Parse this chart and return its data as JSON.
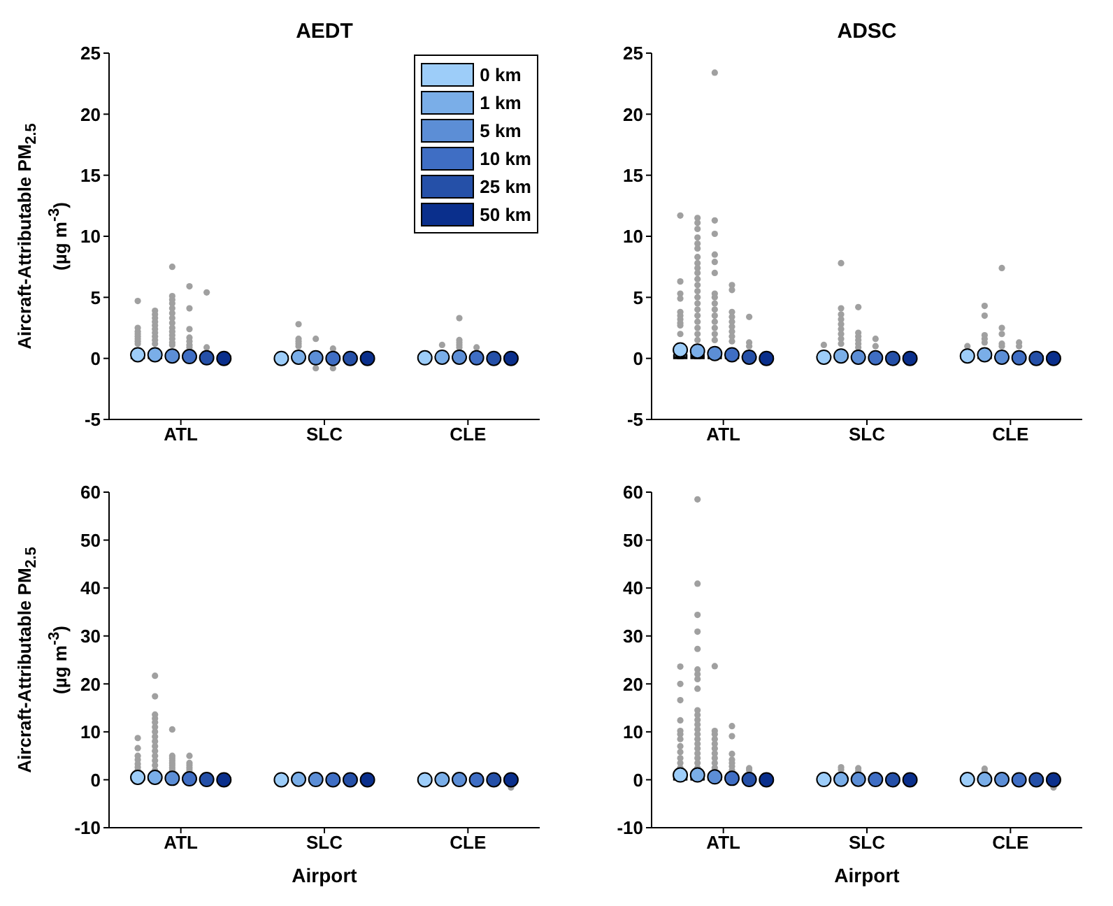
{
  "chart_data": [
    {
      "type": "box",
      "title": "AEDT",
      "ylabel": "Aircraft-Attributable PM$_{2.5}$ (µg m$^{-3}$)",
      "categories": [
        "ATL",
        "SLC",
        "CLE"
      ],
      "ylim": [
        -5,
        25
      ],
      "yticks": [
        -5,
        0,
        5,
        10,
        15,
        20,
        25
      ],
      "legend": "top right",
      "series": [
        {
          "name": "0 km",
          "color": "#9dcdf9",
          "boxes": [
            {
              "low": 0,
              "q1": 0,
              "median": 0.1,
              "q3": 0.3,
              "high": 0.8,
              "mean": 0.3,
              "outliers": [
                4.7,
                2.5,
                2.2,
                2.0,
                1.8,
                1.6,
                1.4,
                1.2
              ]
            },
            {
              "low": 0,
              "q1": 0,
              "median": 0,
              "q3": 0.2,
              "high": 0.4,
              "mean": 0
            },
            {
              "low": 0,
              "q1": 0,
              "median": 0,
              "q3": 0.2,
              "high": 0.4,
              "mean": 0.05
            }
          ]
        },
        {
          "name": "1 km",
          "color": "#7aaee8",
          "boxes": [
            {
              "low": 0,
              "q1": 0,
              "median": 0.1,
              "q3": 0.3,
              "high": 0.8,
              "mean": 0.3,
              "outliers": [
                3.9,
                3.6,
                3.3,
                3.0,
                2.7,
                2.4,
                2.1,
                1.8,
                1.5,
                1.2
              ]
            },
            {
              "low": 0,
              "q1": 0,
              "median": 0,
              "q3": 0.2,
              "high": 0.4,
              "mean": 0.1,
              "outliers": [
                2.8,
                1.6,
                1.4,
                1.2,
                1.0
              ]
            },
            {
              "low": 0,
              "q1": 0,
              "median": 0,
              "q3": 0.2,
              "high": 0.4,
              "mean": 0.1,
              "outliers": [
                1.1
              ]
            }
          ]
        },
        {
          "name": "5 km",
          "color": "#5c8ed6",
          "boxes": [
            {
              "low": 0,
              "q1": 0,
              "median": 0.1,
              "q3": 0.2,
              "high": 0.7,
              "mean": 0.2,
              "outliers": [
                7.5,
                5.1,
                4.8,
                4.5,
                4.1,
                3.7,
                3.3,
                2.9,
                2.5,
                2.2,
                1.9,
                1.6,
                1.3,
                1.1
              ]
            },
            {
              "low": 0,
              "q1": 0,
              "median": 0,
              "q3": 0.2,
              "high": 0.4,
              "mean": 0.05,
              "outliers": [
                1.6,
                -0.8
              ]
            },
            {
              "low": 0,
              "q1": 0,
              "median": 0,
              "q3": 0.2,
              "high": 0.4,
              "mean": 0.1,
              "outliers": [
                3.3,
                1.5,
                1.3,
                1.1,
                0.9
              ]
            }
          ]
        },
        {
          "name": "10 km",
          "color": "#3f6ec4",
          "boxes": [
            {
              "low": 0,
              "q1": 0,
              "median": 0.05,
              "q3": 0.2,
              "high": 0.4,
              "mean": 0.15,
              "outliers": [
                5.9,
                4.1,
                2.4,
                1.7,
                1.4,
                1.1,
                0.9
              ]
            },
            {
              "low": 0,
              "q1": 0,
              "median": 0,
              "q3": 0.2,
              "high": 0.4,
              "mean": 0,
              "outliers": [
                0.8,
                -0.8
              ]
            },
            {
              "low": 0,
              "q1": 0,
              "median": 0,
              "q3": 0.2,
              "high": 0.4,
              "mean": 0.05,
              "outliers": [
                0.9
              ]
            }
          ]
        },
        {
          "name": "25 km",
          "color": "#2550a8",
          "boxes": [
            {
              "low": 0,
              "q1": 0,
              "median": 0,
              "q3": 0.2,
              "high": 0.4,
              "mean": 0.05,
              "outliers": [
                5.4,
                0.9
              ]
            },
            {
              "low": 0,
              "q1": 0,
              "median": 0,
              "q3": 0.2,
              "high": 0.4,
              "mean": 0
            },
            {
              "low": 0,
              "q1": 0,
              "median": 0,
              "q3": 0.2,
              "high": 0.4,
              "mean": 0
            }
          ]
        },
        {
          "name": "50 km",
          "color": "#0a2f8c",
          "boxes": [
            {
              "low": 0,
              "q1": 0,
              "median": 0,
              "q3": 0.2,
              "high": 0.4,
              "mean": 0
            },
            {
              "low": 0,
              "q1": 0,
              "median": 0,
              "q3": 0.2,
              "high": 0.4,
              "mean": 0
            },
            {
              "low": 0,
              "q1": 0,
              "median": 0,
              "q3": 0.2,
              "high": 0.4,
              "mean": 0
            }
          ]
        }
      ]
    },
    {
      "type": "box",
      "title": "ADSC",
      "categories": [
        "ATL",
        "SLC",
        "CLE"
      ],
      "ylim": [
        -5,
        25
      ],
      "yticks": [
        -5,
        0,
        5,
        10,
        15,
        20,
        25
      ],
      "series": [
        {
          "color": "#9dcdf9",
          "boxes": [
            {
              "low": 0,
              "q1": 0,
              "median": 0.1,
              "q3": 0.3,
              "high": 0.8,
              "mean": 0.7,
              "outliers": [
                11.7,
                6.3,
                5.3,
                4.9,
                3.8,
                3.5,
                3.2,
                2.9,
                2.7,
                2.0
              ]
            },
            {
              "low": 0,
              "q1": 0,
              "median": 0,
              "q3": 0.2,
              "high": 0.4,
              "mean": 0.1,
              "outliers": [
                1.1
              ]
            },
            {
              "low": 0,
              "q1": 0,
              "median": 0.1,
              "q3": 0.3,
              "high": 0.6,
              "mean": 0.2,
              "outliers": [
                1.0
              ]
            }
          ]
        },
        {
          "color": "#7aaee8",
          "boxes": [
            {
              "low": 0,
              "q1": 0,
              "median": 0.1,
              "q3": 0.3,
              "high": 0.8,
              "mean": 0.6,
              "outliers": [
                11.5,
                11.1,
                10.6,
                9.9,
                9.4,
                9.0,
                8.3,
                7.8,
                7.4,
                7.0,
                6.5,
                6.0,
                5.5,
                5.0,
                4.5,
                4.0,
                3.5,
                3.0,
                2.5,
                2.0,
                1.5
              ]
            },
            {
              "low": 0,
              "q1": 0,
              "median": 0,
              "q3": 0.2,
              "high": 0.4,
              "mean": 0.2,
              "outliers": [
                7.8,
                4.1,
                3.6,
                3.2,
                2.8,
                2.4,
                2.0,
                1.6,
                1.2
              ]
            },
            {
              "low": 0,
              "q1": 0,
              "median": 0.1,
              "q3": 0.3,
              "high": 0.6,
              "mean": 0.3,
              "outliers": [
                4.3,
                3.5,
                1.9,
                1.6,
                1.3
              ]
            }
          ]
        },
        {
          "color": "#5c8ed6",
          "boxes": [
            {
              "low": 0,
              "q1": 0,
              "median": 0.05,
              "q3": 0.2,
              "high": 0.6,
              "mean": 0.4,
              "outliers": [
                23.4,
                11.3,
                10.2,
                8.5,
                7.9,
                7.0,
                5.3,
                5.0,
                4.5,
                4.0,
                3.5,
                3.0,
                2.5,
                2.0,
                1.5
              ]
            },
            {
              "low": 0,
              "q1": 0,
              "median": 0,
              "q3": 0.2,
              "high": 0.4,
              "mean": 0.1,
              "outliers": [
                4.2,
                2.1,
                1.8,
                1.5,
                1.2,
                0.9
              ]
            },
            {
              "low": 0,
              "q1": 0,
              "median": 0,
              "q3": 0.2,
              "high": 0.4,
              "mean": 0.1,
              "outliers": [
                7.4,
                2.5,
                2.0,
                1.2,
                1.0
              ]
            }
          ]
        },
        {
          "color": "#3f6ec4",
          "boxes": [
            {
              "low": 0,
              "q1": 0,
              "median": 0.05,
              "q3": 0.2,
              "high": 0.4,
              "mean": 0.3,
              "outliers": [
                6.0,
                5.6,
                3.8,
                3.4,
                3.0,
                2.6,
                2.2,
                1.8,
                1.4
              ]
            },
            {
              "low": 0,
              "q1": 0,
              "median": 0,
              "q3": 0.2,
              "high": 0.4,
              "mean": 0.05,
              "outliers": [
                1.6,
                1.0
              ]
            },
            {
              "low": 0,
              "q1": 0,
              "median": 0,
              "q3": 0.2,
              "high": 0.4,
              "mean": 0.05,
              "outliers": [
                1.3,
                1.0
              ]
            }
          ]
        },
        {
          "color": "#2550a8",
          "boxes": [
            {
              "low": 0,
              "q1": 0,
              "median": 0,
              "q3": 0.2,
              "high": 0.4,
              "mean": 0.1,
              "outliers": [
                3.4,
                1.3,
                1.0
              ]
            },
            {
              "low": 0,
              "q1": 0,
              "median": 0,
              "q3": 0.2,
              "high": 0.4,
              "mean": 0
            },
            {
              "low": 0,
              "q1": 0,
              "median": 0,
              "q3": 0.2,
              "high": 0.4,
              "mean": 0
            }
          ]
        },
        {
          "color": "#0a2f8c",
          "boxes": [
            {
              "low": 0,
              "q1": 0,
              "median": 0,
              "q3": 0.2,
              "high": 0.4,
              "mean": 0
            },
            {
              "low": 0,
              "q1": 0,
              "median": 0,
              "q3": 0.2,
              "high": 0.4,
              "mean": 0
            },
            {
              "low": 0,
              "q1": 0,
              "median": 0,
              "q3": 0.2,
              "high": 0.4,
              "mean": 0
            }
          ]
        }
      ]
    },
    {
      "type": "box",
      "ylabel": "Aircraft-Attributable PM$_{2.5}$ (µg m$^{-3}$)",
      "xlabel": "Airport",
      "categories": [
        "ATL",
        "SLC",
        "CLE"
      ],
      "ylim": [
        -10,
        60
      ],
      "yticks": [
        -10,
        0,
        10,
        20,
        30,
        40,
        50,
        60
      ],
      "series": [
        {
          "color": "#9dcdf9",
          "boxes": [
            {
              "low": 0,
              "q1": 0,
              "median": 0.1,
              "q3": 0.5,
              "high": 1.0,
              "mean": 0.5,
              "outliers": [
                8.7,
                6.6,
                5.0,
                4.2,
                3.3,
                2.6,
                2.0
              ]
            },
            {
              "low": 0,
              "q1": 0,
              "median": 0,
              "q3": 0.4,
              "high": 0.8,
              "mean": 0
            },
            {
              "low": 0,
              "q1": 0,
              "median": 0,
              "q3": 0.4,
              "high": 0.8,
              "mean": 0
            }
          ]
        },
        {
          "color": "#7aaee8",
          "boxes": [
            {
              "low": 0,
              "q1": 0,
              "median": 0.1,
              "q3": 0.5,
              "high": 1.0,
              "mean": 0.5,
              "outliers": [
                21.7,
                17.4,
                13.6,
                12.8,
                12.0,
                11.0,
                10.0,
                9.0,
                8.0,
                7.0,
                6.0,
                5.0,
                4.0,
                3.0,
                2.0
              ]
            },
            {
              "low": 0,
              "q1": 0,
              "median": 0,
              "q3": 0.4,
              "high": 0.8,
              "mean": 0.1
            },
            {
              "low": 0,
              "q1": 0,
              "median": 0,
              "q3": 0.4,
              "high": 0.8,
              "mean": 0.05
            }
          ]
        },
        {
          "color": "#5c8ed6",
          "boxes": [
            {
              "low": 0,
              "q1": 0,
              "median": 0.05,
              "q3": 0.4,
              "high": 0.8,
              "mean": 0.3,
              "outliers": [
                10.5,
                5.0,
                4.5,
                4.0,
                3.5,
                3.0,
                2.5,
                2.0
              ]
            },
            {
              "low": 0,
              "q1": 0,
              "median": 0,
              "q3": 0.4,
              "high": 0.8,
              "mean": 0.05
            },
            {
              "low": 0,
              "q1": 0,
              "median": 0,
              "q3": 0.4,
              "high": 0.8,
              "mean": 0.05
            }
          ]
        },
        {
          "color": "#3f6ec4",
          "boxes": [
            {
              "low": 0,
              "q1": 0,
              "median": 0.05,
              "q3": 0.4,
              "high": 0.8,
              "mean": 0.2,
              "outliers": [
                5.0,
                3.5,
                3.0,
                2.5,
                2.0
              ]
            },
            {
              "low": 0,
              "q1": 0,
              "median": 0,
              "q3": 0.4,
              "high": 0.8,
              "mean": 0
            },
            {
              "low": 0,
              "q1": 0,
              "median": 0,
              "q3": 0.4,
              "high": 0.8,
              "mean": 0
            }
          ]
        },
        {
          "color": "#2550a8",
          "boxes": [
            {
              "low": 0,
              "q1": 0,
              "median": 0,
              "q3": 0.4,
              "high": 0.8,
              "mean": 0.05
            },
            {
              "low": 0,
              "q1": 0,
              "median": 0,
              "q3": 0.4,
              "high": 0.8,
              "mean": 0
            },
            {
              "low": 0,
              "q1": 0,
              "median": 0,
              "q3": 0.4,
              "high": 0.8,
              "mean": 0
            }
          ]
        },
        {
          "color": "#0a2f8c",
          "boxes": [
            {
              "low": 0,
              "q1": 0,
              "median": 0,
              "q3": 0.4,
              "high": 0.8,
              "mean": 0
            },
            {
              "low": 0,
              "q1": 0,
              "median": 0,
              "q3": 0.4,
              "high": 0.8,
              "mean": 0
            },
            {
              "low": -0.5,
              "q1": 0,
              "median": 0,
              "q3": 0.4,
              "high": 0.8,
              "mean": 0,
              "outliers": [
                -1.6
              ]
            }
          ]
        }
      ]
    },
    {
      "type": "box",
      "xlabel": "Airport",
      "categories": [
        "ATL",
        "SLC",
        "CLE"
      ],
      "ylim": [
        -10,
        60
      ],
      "yticks": [
        -10,
        0,
        10,
        20,
        30,
        40,
        50,
        60
      ],
      "series": [
        {
          "color": "#9dcdf9",
          "boxes": [
            {
              "low": 0,
              "q1": 0,
              "median": 0.1,
              "q3": 0.5,
              "high": 1.0,
              "mean": 1.0,
              "outliers": [
                23.6,
                20.0,
                16.6,
                12.4,
                10.2,
                9.5,
                8.5,
                7.0,
                5.8,
                4.5,
                3.5,
                2.5
              ]
            },
            {
              "low": 0,
              "q1": 0,
              "median": 0,
              "q3": 0.4,
              "high": 0.8,
              "mean": 0.05
            },
            {
              "low": 0,
              "q1": 0,
              "median": 0,
              "q3": 0.4,
              "high": 0.8,
              "mean": 0.05
            }
          ]
        },
        {
          "color": "#7aaee8",
          "boxes": [
            {
              "low": 0,
              "q1": 0,
              "median": 0.1,
              "q3": 0.5,
              "high": 1.0,
              "mean": 1.0,
              "outliers": [
                58.5,
                40.9,
                34.4,
                30.9,
                27.3,
                23.0,
                22.0,
                21.0,
                19.0,
                14.5,
                13.5,
                12.5,
                11.5,
                10.5,
                9.5,
                8.5,
                7.5,
                6.5,
                5.5,
                4.5,
                3.5,
                2.5
              ]
            },
            {
              "low": 0,
              "q1": 0,
              "median": 0,
              "q3": 0.4,
              "high": 0.8,
              "mean": 0.1,
              "outliers": [
                2.6,
                2.1
              ]
            },
            {
              "low": 0,
              "q1": 0,
              "median": 0,
              "q3": 0.4,
              "high": 0.8,
              "mean": 0.1,
              "outliers": [
                2.3,
                1.6
              ]
            }
          ]
        },
        {
          "color": "#5c8ed6",
          "boxes": [
            {
              "low": 0,
              "q1": 0,
              "median": 0.05,
              "q3": 0.4,
              "high": 0.9,
              "mean": 0.6,
              "outliers": [
                23.7,
                10.2,
                9.5,
                8.5,
                7.5,
                6.5,
                5.5,
                4.5,
                3.5,
                2.5
              ]
            },
            {
              "low": 0,
              "q1": 0,
              "median": 0,
              "q3": 0.4,
              "high": 0.8,
              "mean": 0.1,
              "outliers": [
                2.4,
                1.8
              ]
            },
            {
              "low": 0,
              "q1": 0,
              "median": 0,
              "q3": 0.4,
              "high": 0.8,
              "mean": 0.05
            }
          ]
        },
        {
          "color": "#3f6ec4",
          "boxes": [
            {
              "low": 0,
              "q1": 0,
              "median": 0.05,
              "q3": 0.4,
              "high": 0.8,
              "mean": 0.3,
              "outliers": [
                11.2,
                9.1,
                5.4,
                4.2,
                3.5,
                2.8,
                2.0
              ]
            },
            {
              "low": 0,
              "q1": 0,
              "median": 0,
              "q3": 0.4,
              "high": 0.8,
              "mean": 0.05
            },
            {
              "low": 0,
              "q1": 0,
              "median": 0,
              "q3": 0.4,
              "high": 0.8,
              "mean": 0
            }
          ]
        },
        {
          "color": "#2550a8",
          "boxes": [
            {
              "low": 0,
              "q1": 0,
              "median": 0,
              "q3": 0.4,
              "high": 0.8,
              "mean": 0.05,
              "outliers": [
                2.4,
                2.0
              ]
            },
            {
              "low": 0,
              "q1": 0,
              "median": 0,
              "q3": 0.4,
              "high": 0.8,
              "mean": 0
            },
            {
              "low": 0,
              "q1": 0,
              "median": 0,
              "q3": 0.4,
              "high": 0.8,
              "mean": 0
            }
          ]
        },
        {
          "color": "#0a2f8c",
          "boxes": [
            {
              "low": 0,
              "q1": 0,
              "median": 0,
              "q3": 0.4,
              "high": 0.8,
              "mean": 0
            },
            {
              "low": 0,
              "q1": 0,
              "median": 0,
              "q3": 0.4,
              "high": 0.8,
              "mean": 0
            },
            {
              "low": -0.5,
              "q1": 0,
              "median": 0,
              "q3": 0.4,
              "high": 0.8,
              "mean": 0,
              "outliers": [
                -1.6
              ]
            }
          ]
        }
      ]
    }
  ]
}
